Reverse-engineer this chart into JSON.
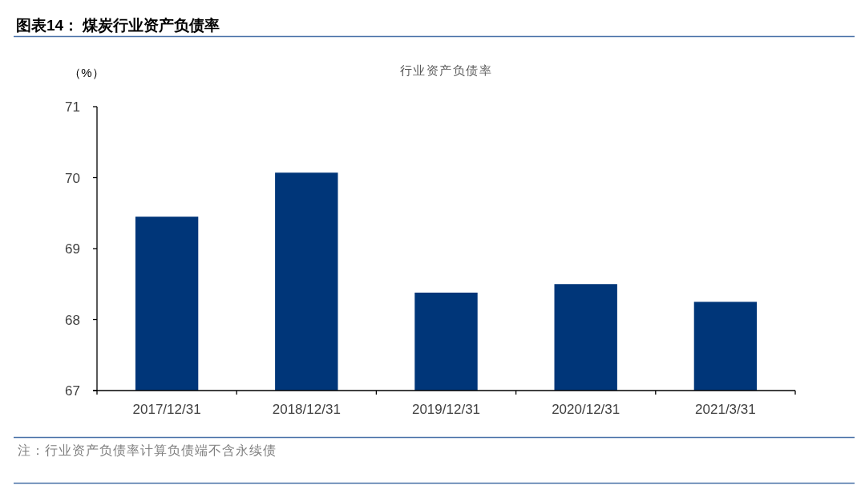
{
  "chart_data": {
    "type": "bar",
    "title": "图表14：  煤炭行业资产负债率",
    "subtitle": "行业资产负债率",
    "ylabel": "（%）",
    "categories": [
      "2017/12/31",
      "2018/12/31",
      "2019/12/31",
      "2020/12/31",
      "2021/3/31"
    ],
    "values": [
      69.45,
      70.07,
      68.38,
      68.5,
      68.25
    ],
    "color": "#003679",
    "ylim": [
      67,
      71
    ],
    "yticks": [
      67,
      68,
      69,
      70,
      71
    ],
    "annotations": [
      "注：行业资产负债率计算负债端不含永续债"
    ]
  }
}
